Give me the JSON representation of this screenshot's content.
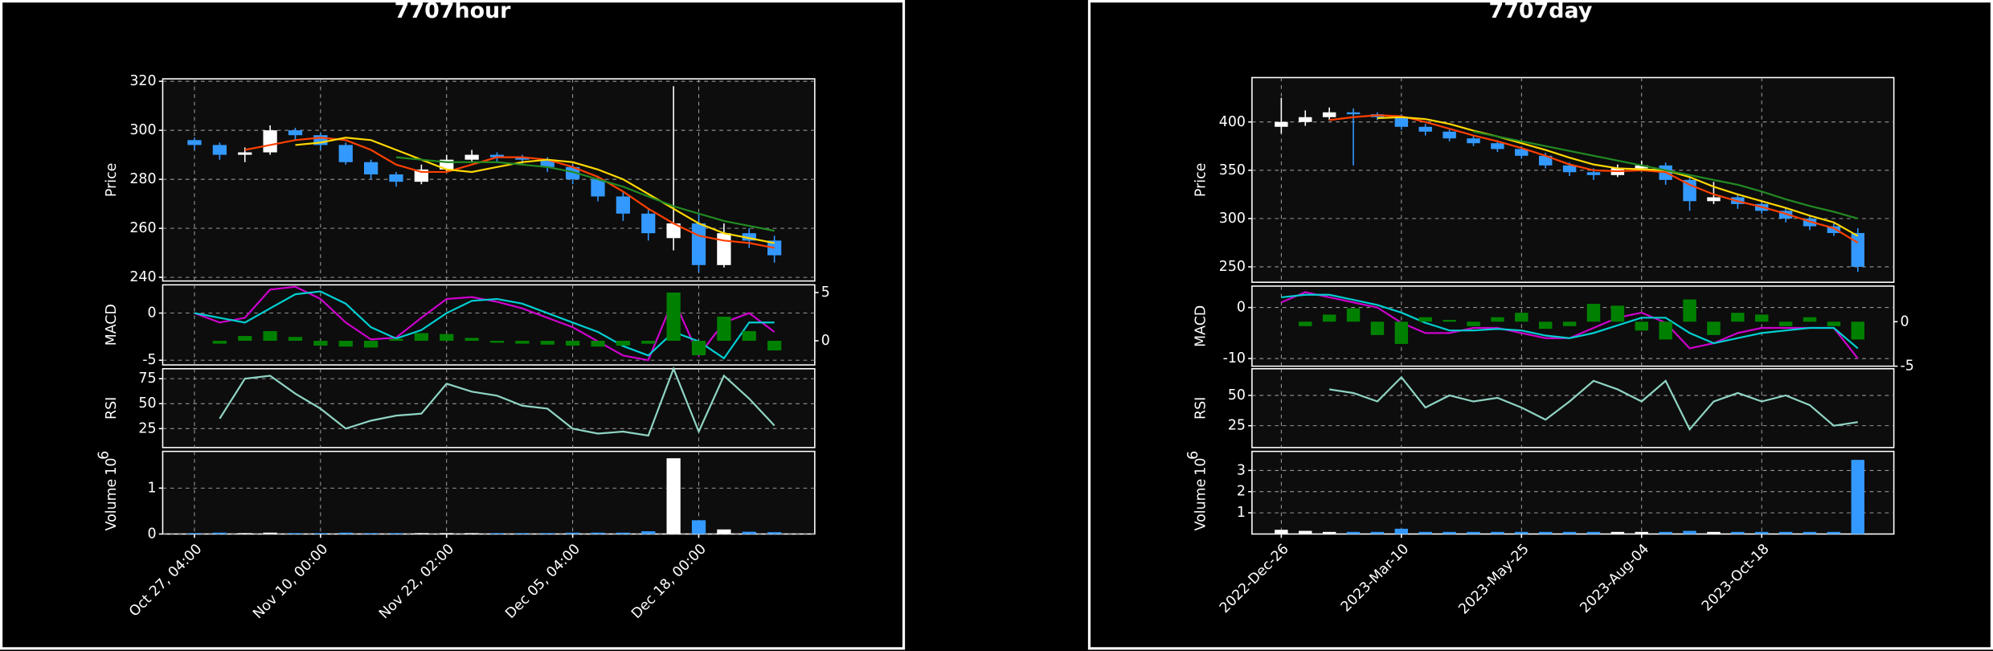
{
  "chart_data": [
    {
      "type": "candlestick",
      "title": "7707hour",
      "grid": true,
      "xlim": [
        -1.26,
        24.6
      ],
      "xticks": [
        {
          "value": 0,
          "label": "Oct 27, 04:00"
        },
        {
          "value": 5,
          "label": "Nov 10, 00:00"
        },
        {
          "value": 10,
          "label": "Nov 22, 02:00"
        },
        {
          "value": 15,
          "label": "Dec 05, 04:00"
        },
        {
          "value": 20,
          "label": "Dec 18, 00:00"
        }
      ],
      "price": {
        "label": "Price",
        "ylim": [
          238.5,
          321
        ],
        "yticks": [
          240,
          260,
          280,
          300,
          320
        ],
        "up_color": "#ffffff",
        "down_color": "#3399ff",
        "open": [
          296,
          294,
          290,
          291,
          300,
          298,
          294,
          287,
          282,
          279,
          284,
          288,
          290,
          289,
          288,
          285,
          280,
          273,
          266,
          256,
          262,
          245,
          258,
          255
        ],
        "high": [
          297,
          295,
          293,
          302,
          301,
          299,
          295,
          288,
          283,
          286,
          290,
          292,
          291,
          290,
          289,
          286,
          281,
          275,
          268,
          318,
          266,
          262,
          260,
          257
        ],
        "low": [
          292,
          288,
          287,
          290,
          296,
          292,
          286,
          280,
          277,
          278,
          283,
          287,
          287,
          286,
          283,
          278,
          271,
          263,
          255,
          251,
          242,
          244,
          252,
          246
        ],
        "close": [
          294,
          290,
          291,
          300,
          298,
          294,
          287,
          282,
          279,
          284,
          288,
          290,
          289,
          288,
          285,
          280,
          273,
          266,
          258,
          262,
          245,
          258,
          255,
          249
        ],
        "series": [
          {
            "color": "#ff4000",
            "values": [
              null,
              null,
              292,
              294,
              296,
              297,
              296,
              292,
              286,
              283,
              283,
              286,
              289,
              289,
              288,
              285,
              281,
              275,
              268,
              262,
              257,
              255,
              254,
              252
            ]
          },
          {
            "color": "#ffd700",
            "values": [
              null,
              null,
              null,
              null,
              294,
              295,
              297,
              296,
              292,
              288,
              284,
              283,
              285,
              287,
              288,
              287,
              284,
              280,
              274,
              268,
              262,
              258,
              256,
              254
            ]
          },
          {
            "color": "#228b22",
            "values": [
              null,
              null,
              null,
              null,
              null,
              null,
              null,
              null,
              289,
              288,
              287,
              287,
              287,
              286,
              285,
              283,
              280,
              277,
              273,
              269,
              266,
              263,
              261,
              259
            ]
          }
        ]
      },
      "macd": {
        "label": "MACD",
        "ylim": [
          -5.5,
          3
        ],
        "yticks": [
          -5,
          0
        ],
        "y2lim": [
          -2.5,
          5.8
        ],
        "y2ticks": [
          0,
          5
        ],
        "series": [
          {
            "color": "#cc00cc",
            "values": [
              0,
              -1,
              -0.5,
              2.5,
              2.8,
              1.5,
              -1,
              -2.8,
              -2.6,
              -0.5,
              1.5,
              1.7,
              1.2,
              0.5,
              -0.5,
              -1.5,
              -3,
              -4.5,
              -5,
              1.5,
              -4.5,
              -1,
              0,
              -2
            ]
          },
          {
            "color": "#00ced1",
            "values": [
              0,
              -0.5,
              -1,
              0.5,
              2,
              2.3,
              1,
              -1.5,
              -2.7,
              -1.8,
              0,
              1.3,
              1.5,
              1,
              0,
              -1,
              -2,
              -3.5,
              -4.5,
              -2,
              -3,
              -4.8,
              -1,
              -1
            ]
          },
          {
            "type": "bar",
            "axis": "y2",
            "color": "#008000",
            "values": [
              0,
              -0.3,
              0.5,
              1,
              0.4,
              -0.5,
              -0.6,
              -0.7,
              0.2,
              0.8,
              0.7,
              0.3,
              -0.2,
              -0.3,
              -0.4,
              -0.5,
              -0.6,
              -0.5,
              -0.3,
              5,
              -1.5,
              2.5,
              1,
              -1
            ]
          }
        ]
      },
      "rsi": {
        "label": "RSI",
        "ylim": [
          6,
          85
        ],
        "yticks": [
          25,
          50,
          75
        ],
        "series": [
          {
            "color": "#8fd4c4",
            "values": [
              null,
              35,
              75,
              78,
              60,
              45,
              25,
              33,
              38,
              40,
              70,
              62,
              58,
              48,
              45,
              25,
              20,
              22,
              18,
              85,
              22,
              78,
              55,
              28
            ]
          }
        ]
      },
      "volume": {
        "label": "Volume",
        "scale": {
          "base": "10",
          "exponent": "6"
        },
        "ylim": [
          0,
          1.8
        ],
        "yticks": [
          0,
          1
        ],
        "values": [
          0.02,
          0.03,
          0.02,
          0.03,
          0.02,
          0.02,
          0.03,
          0.02,
          0.02,
          0.02,
          0.02,
          0.02,
          0.02,
          0.02,
          0.02,
          0.03,
          0.03,
          0.03,
          0.06,
          1.65,
          0.3,
          0.1,
          0.05,
          0.04
        ]
      }
    },
    {
      "type": "candlestick",
      "title": "7707day",
      "grid": true,
      "xlim": [
        -1.22,
        25.5
      ],
      "xticks": [
        {
          "value": 0,
          "label": "2022-Dec-26"
        },
        {
          "value": 5,
          "label": "2023-Mar-10"
        },
        {
          "value": 10,
          "label": "2023-May-25"
        },
        {
          "value": 15,
          "label": "2023-Aug-04"
        },
        {
          "value": 20,
          "label": "2023-Oct-18"
        }
      ],
      "price": {
        "label": "Price",
        "ylim": [
          234,
          446
        ],
        "yticks": [
          250,
          300,
          350,
          400
        ],
        "up_color": "#ffffff",
        "down_color": "#3399ff",
        "open": [
          395,
          400,
          405,
          410,
          408,
          405,
          395,
          390,
          383,
          378,
          372,
          365,
          355,
          348,
          345,
          352,
          355,
          340,
          318,
          322,
          315,
          308,
          300,
          292,
          285
        ],
        "high": [
          425,
          412,
          415,
          414,
          410,
          408,
          398,
          393,
          386,
          381,
          375,
          368,
          358,
          352,
          356,
          360,
          358,
          342,
          338,
          325,
          318,
          311,
          303,
          295,
          290
        ],
        "low": [
          388,
          396,
          402,
          355,
          402,
          392,
          386,
          380,
          375,
          369,
          362,
          352,
          344,
          340,
          343,
          349,
          335,
          308,
          315,
          310,
          305,
          296,
          288,
          282,
          245
        ],
        "close": [
          400,
          405,
          410,
          408,
          405,
          395,
          390,
          383,
          378,
          372,
          365,
          355,
          348,
          345,
          352,
          355,
          340,
          318,
          322,
          315,
          308,
          300,
          292,
          285,
          250
        ],
        "series": [
          {
            "color": "#ff4000",
            "values": [
              null,
              null,
              402,
              405,
              407,
              406,
              400,
              393,
              386,
              380,
              373,
              365,
              356,
              350,
              349,
              350,
              348,
              335,
              325,
              318,
              312,
              305,
              297,
              290,
              275
            ]
          },
          {
            "color": "#ffd700",
            "values": [
              null,
              null,
              null,
              null,
              404,
              405,
              403,
              398,
              391,
              385,
              378,
              371,
              363,
              356,
              352,
              351,
              350,
              343,
              333,
              325,
              318,
              311,
              303,
              296,
              282
            ]
          },
          {
            "color": "#228b22",
            "values": [
              null,
              null,
              null,
              null,
              null,
              null,
              null,
              null,
              390,
              385,
              380,
              375,
              370,
              365,
              360,
              355,
              350,
              345,
              340,
              335,
              328,
              320,
              313,
              307,
              300
            ]
          }
        ]
      },
      "macd": {
        "label": "MACD",
        "ylim": [
          -11.5,
          4.2
        ],
        "yticks": [
          -10,
          0
        ],
        "y2lim": [
          -5,
          4
        ],
        "y2ticks": [
          -5,
          0
        ],
        "series": [
          {
            "color": "#cc00cc",
            "values": [
              1,
              3,
              2,
              1,
              0,
              -3,
              -5,
              -5,
              -4,
              -4,
              -5,
              -6,
              -6,
              -4,
              -2,
              -1,
              -3,
              -8,
              -7,
              -5,
              -4,
              -4,
              -4,
              -4,
              -10
            ]
          },
          {
            "color": "#00ced1",
            "values": [
              2,
              2.5,
              2.5,
              1.5,
              0.5,
              -1,
              -3,
              -4.5,
              -4.5,
              -4.2,
              -4.5,
              -5.5,
              -6,
              -5,
              -3.5,
              -2,
              -2,
              -5,
              -7,
              -6,
              -5,
              -4.5,
              -4,
              -4,
              -8
            ]
          },
          {
            "type": "bar",
            "axis": "y2",
            "color": "#008000",
            "values": [
              0,
              -0.5,
              0.8,
              1.5,
              -1.5,
              -2.5,
              0.5,
              0.2,
              -0.5,
              0.5,
              1,
              -0.8,
              -0.5,
              2,
              1.8,
              -1,
              -2,
              2.5,
              -1.5,
              1,
              0.8,
              -0.5,
              0.5,
              -0.5,
              -2
            ]
          }
        ]
      },
      "rsi": {
        "label": "RSI",
        "ylim": [
          7,
          72
        ],
        "yticks": [
          25,
          50
        ],
        "series": [
          {
            "color": "#8fd4c4",
            "values": [
              null,
              null,
              55,
              52,
              45,
              65,
              40,
              50,
              45,
              48,
              40,
              30,
              45,
              62,
              55,
              45,
              62,
              22,
              45,
              52,
              45,
              50,
              42,
              25,
              28
            ]
          }
        ]
      },
      "volume": {
        "label": "Volume",
        "scale": {
          "base": "10",
          "exponent": "6"
        },
        "ylim": [
          0,
          3.9
        ],
        "yticks": [
          1,
          2,
          3
        ],
        "values": [
          0.2,
          0.15,
          0.1,
          0.1,
          0.1,
          0.25,
          0.1,
          0.1,
          0.1,
          0.1,
          0.1,
          0.1,
          0.1,
          0.1,
          0.1,
          0.1,
          0.1,
          0.15,
          0.1,
          0.1,
          0.1,
          0.1,
          0.1,
          0.1,
          3.5
        ]
      }
    }
  ]
}
